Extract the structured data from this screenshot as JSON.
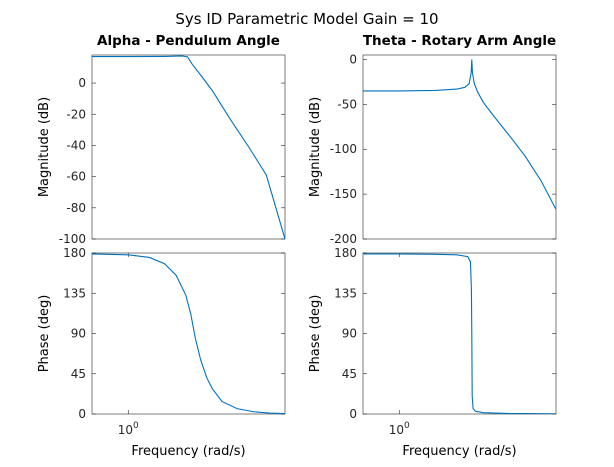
{
  "figure_title": "Sys ID Parametric Model Gain = 10",
  "chart_data": [
    {
      "type": "line",
      "title": "Alpha - Pendulum Angle",
      "xlabel": "",
      "ylabel": "Magnitude (dB)",
      "xscale": "log",
      "xlim": [
        0.5,
        20
      ],
      "ylim": [
        -100,
        18
      ],
      "yticks": [
        0,
        -20,
        -40,
        -60,
        -80,
        -100
      ],
      "xticks": [],
      "grid": false,
      "color": "#0072bd",
      "series": [
        {
          "x": [
            0.5,
            1,
            2,
            2.8,
            3.1,
            3.4,
            4,
            5,
            7,
            10,
            14,
            20
          ],
          "y": [
            17,
            17,
            17.1,
            17.4,
            16.8,
            12,
            5,
            -5,
            -23,
            -41,
            -59,
            -100
          ]
        }
      ]
    },
    {
      "type": "line",
      "title": "Theta - Rotary Arm Angle",
      "xlabel": "",
      "ylabel": "Magnitude (dB)",
      "xscale": "log",
      "xlim": [
        0.5,
        20
      ],
      "ylim": [
        -200,
        5
      ],
      "yticks": [
        0,
        -50,
        -100,
        -150,
        -200
      ],
      "xticks": [],
      "grid": false,
      "color": "#0072bd",
      "series": [
        {
          "x": [
            0.5,
            1,
            2,
            3,
            3.5,
            3.8,
            3.95,
            4.0,
            4.05,
            4.2,
            4.5,
            5,
            6,
            8,
            11,
            15,
            20
          ],
          "y": [
            -35,
            -35,
            -34.5,
            -33,
            -31,
            -27,
            -15,
            0,
            -15,
            -27,
            -37,
            -48,
            -62,
            -83,
            -107,
            -135,
            -167
          ]
        }
      ]
    },
    {
      "type": "line",
      "title": "",
      "xlabel": "Frequency  (rad/s)",
      "ylabel": "Phase (deg)",
      "xscale": "log",
      "xlim": [
        0.5,
        20
      ],
      "ylim": [
        0,
        180
      ],
      "yticks": [
        180,
        135,
        90,
        45,
        0
      ],
      "xticks": [
        1
      ],
      "xticklabels": [
        "10^0"
      ],
      "grid": false,
      "color": "#0072bd",
      "series": [
        {
          "x": [
            0.5,
            1,
            1.5,
            2,
            2.5,
            3,
            3.3,
            3.6,
            4,
            4.5,
            5,
            6,
            8,
            11,
            15,
            20
          ],
          "y": [
            179,
            178,
            175,
            168,
            155,
            133,
            112,
            85,
            60,
            40,
            28,
            14,
            6,
            2.5,
            1,
            0.5
          ]
        }
      ]
    },
    {
      "type": "line",
      "title": "",
      "xlabel": "Frequency  (rad/s)",
      "ylabel": "Phase (deg)",
      "xscale": "log",
      "xlim": [
        0.5,
        20
      ],
      "ylim": [
        0,
        180
      ],
      "yticks": [
        180,
        135,
        90,
        45,
        0
      ],
      "xticks": [
        1
      ],
      "xticklabels": [
        "10^0"
      ],
      "grid": false,
      "color": "#0072bd",
      "series": [
        {
          "x": [
            0.5,
            1,
            2,
            3,
            3.7,
            3.9,
            3.97,
            4.0,
            4.03,
            4.1,
            4.3,
            5,
            8,
            20
          ],
          "y": [
            179,
            179,
            178.5,
            178,
            176,
            170,
            140,
            90,
            20,
            6,
            3,
            1.5,
            0.6,
            0.2
          ]
        }
      ]
    }
  ]
}
